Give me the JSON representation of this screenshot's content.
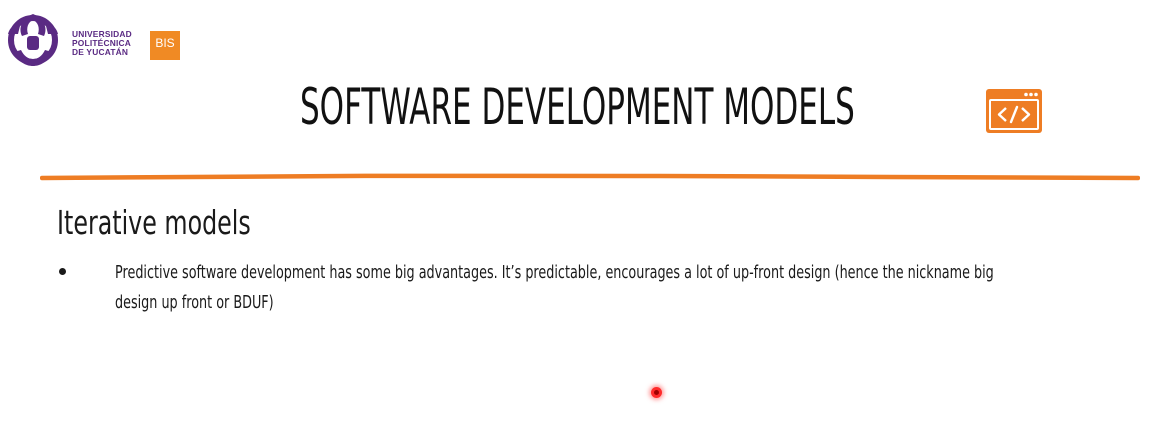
{
  "logo": {
    "line1": "UNIVERSIDAD",
    "line2": "POLITÉCNICA",
    "line3": "DE YUCATÁN",
    "badge": "BIS",
    "emblem_color": "#5a2a83",
    "badge_color": "#f08a24"
  },
  "slide": {
    "title": "SOFTWARE DEVELOPMENT MODELS",
    "title_icon": "code-window-icon",
    "section_heading": "Iterative models",
    "bullets": [
      {
        "text": "Predictive software development has some big advantages. It’s predictable, encourages a lot of up-front design (hence the nickname big design up front or BDUF)"
      }
    ],
    "accent_color": "#ee7d24"
  }
}
